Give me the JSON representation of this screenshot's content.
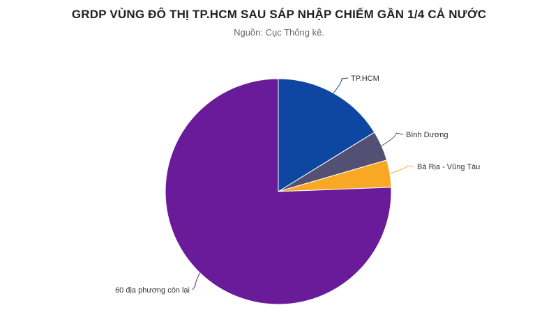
{
  "title": "GRDP VÙNG ĐÔ THỊ TP.HCM SAU SÁP NHẬP CHIẾM GẦN 1/4 CẢ NƯỚC",
  "subtitle": "Nguồn: Cục Thống kê.",
  "chart_data": {
    "type": "pie",
    "title": "GRDP VÙNG ĐÔ THỊ TP.HCM SAU SÁP NHẬP CHIẾM GẦN 1/4 CẢ NƯỚC",
    "subtitle": "Nguồn: Cục Thống kê.",
    "slices": [
      {
        "label": "TP.HCM",
        "value": 16.2,
        "color": "#0d47a1"
      },
      {
        "label": "Bình Dương",
        "value": 4.3,
        "color": "#545073"
      },
      {
        "label": "Bà Rịa - Vũng Tàu",
        "value": 3.9,
        "color": "#f9a825"
      },
      {
        "label": "60 địa phương còn lại",
        "value": 75.6,
        "color": "#6a1b9a"
      }
    ]
  }
}
